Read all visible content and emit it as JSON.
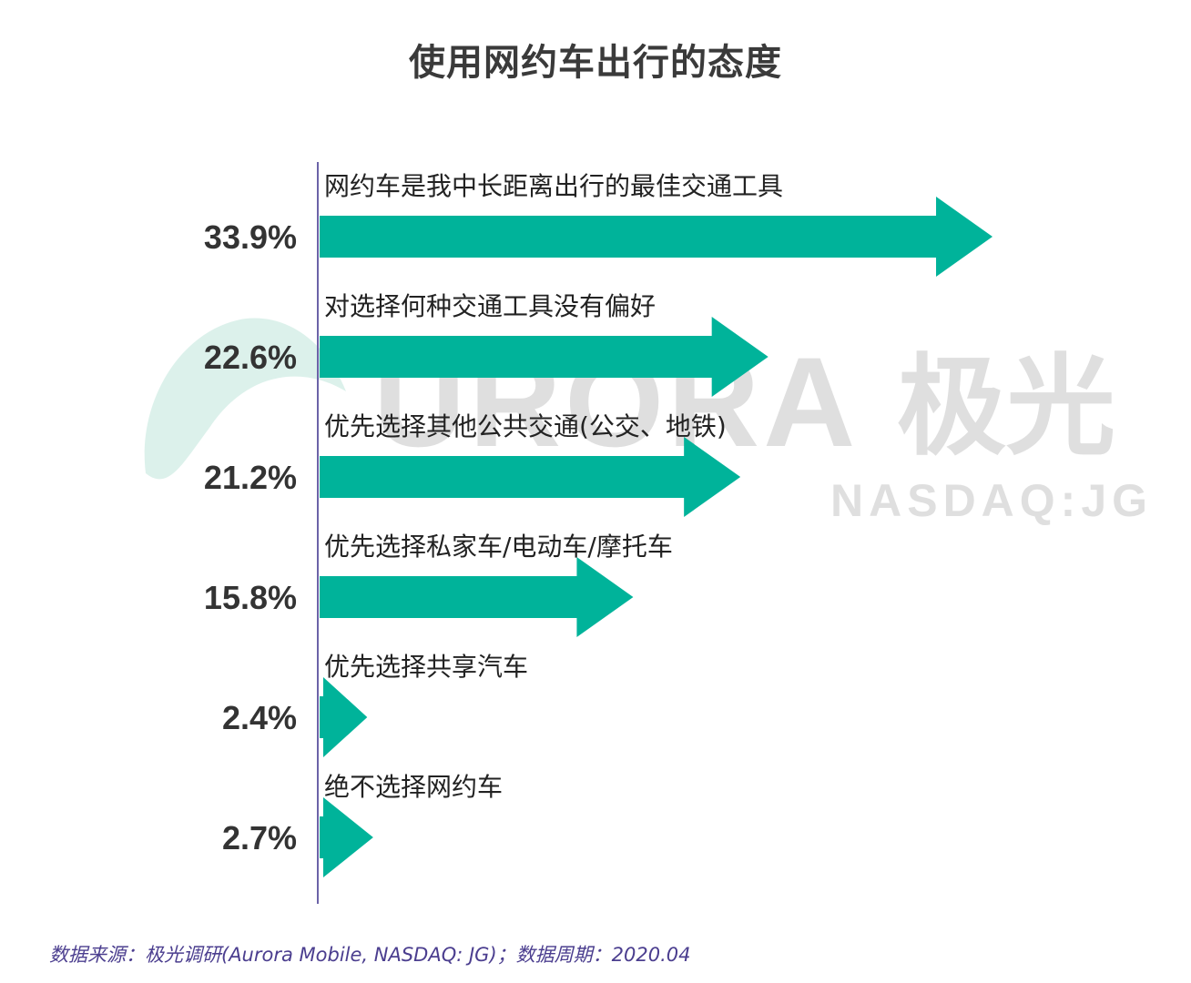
{
  "chart_data": {
    "type": "bar",
    "orientation": "horizontal",
    "title": "使用网约车出行的态度",
    "categories": [
      "网约车是我中长距离出行的最佳交通工具",
      "对选择何种交通工具没有偏好",
      "优先选择其他公共交通(公交、地铁)",
      "优先选择私家车/电动车/摩托车",
      "优先选择共享汽车",
      "绝不选择网约车"
    ],
    "values": [
      33.9,
      22.6,
      21.2,
      15.8,
      2.4,
      2.7
    ],
    "value_labels": [
      "33.9%",
      "22.6%",
      "21.2%",
      "15.8%",
      "2.4%",
      "2.7%"
    ],
    "xlim": [
      0,
      35
    ],
    "grid": false,
    "legend": "none",
    "bar_color": "#00b39a"
  },
  "watermark": {
    "brand": "URORA",
    "brand_cn": "极光",
    "exchange": "NASDAQ:JG"
  },
  "footer": {
    "source": "数据来源：极光调研(Aurora Mobile, NASDAQ: JG)；数据周期：2020.04"
  },
  "colors": {
    "accent": "#00b39a",
    "axis": "#6b63a8",
    "title": "#3a3a3a",
    "source_text": "#4b3e8f",
    "watermark": "#d9d9d9"
  }
}
